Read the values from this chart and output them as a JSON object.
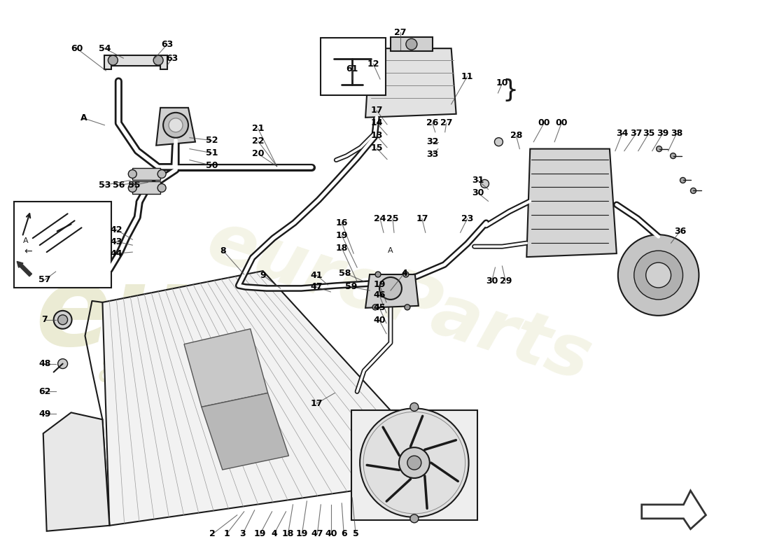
{
  "bg_color": "#ffffff",
  "line_color": "#1a1a1a",
  "label_color": "#000000",
  "watermark_color": "#d4d4a0",
  "figsize": [
    11.0,
    8.0
  ],
  "dpi": 100,
  "labels": [
    [
      "60",
      108,
      68,
      150,
      100
    ],
    [
      "54",
      148,
      68,
      175,
      82
    ],
    [
      "63",
      238,
      62,
      220,
      82
    ],
    [
      "63",
      245,
      82,
      238,
      92
    ],
    [
      "52",
      302,
      200,
      270,
      196
    ],
    [
      "51",
      302,
      218,
      270,
      212
    ],
    [
      "50",
      302,
      236,
      270,
      228
    ],
    [
      "53",
      148,
      264,
      185,
      257
    ],
    [
      "56",
      168,
      264,
      198,
      260
    ],
    [
      "55",
      190,
      264,
      210,
      260
    ],
    [
      "A",
      118,
      168,
      148,
      178
    ],
    [
      "21",
      368,
      183,
      395,
      237
    ],
    [
      "22",
      368,
      201,
      395,
      237
    ],
    [
      "20",
      368,
      219,
      395,
      237
    ],
    [
      "42",
      165,
      328,
      188,
      342
    ],
    [
      "43",
      165,
      345,
      188,
      350
    ],
    [
      "44",
      165,
      362,
      188,
      360
    ],
    [
      "8",
      318,
      358,
      348,
      392
    ],
    [
      "9",
      375,
      393,
      400,
      412
    ],
    [
      "16",
      488,
      318,
      505,
      362
    ],
    [
      "19",
      488,
      336,
      510,
      382
    ],
    [
      "18",
      488,
      354,
      510,
      402
    ],
    [
      "41",
      452,
      393,
      468,
      407
    ],
    [
      "58",
      492,
      390,
      520,
      402
    ],
    [
      "47",
      452,
      410,
      472,
      417
    ],
    [
      "59",
      502,
      410,
      528,
      415
    ],
    [
      "4",
      578,
      390,
      558,
      415
    ],
    [
      "19",
      542,
      407,
      552,
      432
    ],
    [
      "46",
      542,
      422,
      552,
      447
    ],
    [
      "45",
      542,
      440,
      552,
      462
    ],
    [
      "40",
      542,
      458,
      552,
      477
    ],
    [
      "27",
      572,
      45,
      572,
      70
    ],
    [
      "12",
      533,
      90,
      543,
      112
    ],
    [
      "11",
      668,
      108,
      645,
      148
    ],
    [
      "10",
      718,
      118,
      712,
      132
    ],
    [
      "17",
      538,
      157,
      553,
      177
    ],
    [
      "14",
      538,
      175,
      553,
      192
    ],
    [
      "13",
      538,
      193,
      553,
      210
    ],
    [
      "15",
      538,
      211,
      553,
      227
    ],
    [
      "26",
      618,
      175,
      622,
      188
    ],
    [
      "27",
      638,
      175,
      636,
      188
    ],
    [
      "32",
      618,
      202,
      626,
      202
    ],
    [
      "33",
      618,
      220,
      626,
      212
    ],
    [
      "00",
      778,
      175,
      763,
      202
    ],
    [
      "00",
      803,
      175,
      793,
      202
    ],
    [
      "28",
      738,
      193,
      743,
      212
    ],
    [
      "31",
      683,
      257,
      698,
      270
    ],
    [
      "30",
      683,
      275,
      698,
      287
    ],
    [
      "17",
      603,
      312,
      608,
      332
    ],
    [
      "23",
      668,
      312,
      658,
      332
    ],
    [
      "24",
      543,
      312,
      548,
      332
    ],
    [
      "25",
      561,
      312,
      563,
      332
    ],
    [
      "29",
      723,
      402,
      718,
      380
    ],
    [
      "30",
      703,
      402,
      708,
      382
    ],
    [
      "34",
      890,
      190,
      880,
      215
    ],
    [
      "37",
      910,
      190,
      893,
      215
    ],
    [
      "35",
      928,
      190,
      913,
      215
    ],
    [
      "39",
      948,
      190,
      933,
      215
    ],
    [
      "38",
      968,
      190,
      956,
      215
    ],
    [
      "36",
      973,
      330,
      960,
      347
    ],
    [
      "7",
      62,
      457,
      78,
      457
    ],
    [
      "48",
      62,
      520,
      78,
      520
    ],
    [
      "62",
      62,
      560,
      78,
      560
    ],
    [
      "49",
      62,
      592,
      78,
      592
    ],
    [
      "57",
      62,
      400,
      78,
      388
    ],
    [
      "17",
      452,
      577,
      478,
      562
    ],
    [
      "61",
      503,
      97,
      503,
      112
    ],
    [
      "2",
      303,
      764,
      338,
      737
    ],
    [
      "1",
      323,
      764,
      348,
      732
    ],
    [
      "3",
      346,
      764,
      363,
      730
    ],
    [
      "19",
      371,
      764,
      388,
      732
    ],
    [
      "4",
      391,
      764,
      408,
      732
    ],
    [
      "18",
      411,
      764,
      418,
      722
    ],
    [
      "19",
      431,
      764,
      438,
      717
    ],
    [
      "47",
      453,
      764,
      458,
      722
    ],
    [
      "40",
      473,
      764,
      473,
      722
    ],
    [
      "6",
      491,
      764,
      488,
      720
    ],
    [
      "5",
      508,
      764,
      503,
      712
    ]
  ]
}
